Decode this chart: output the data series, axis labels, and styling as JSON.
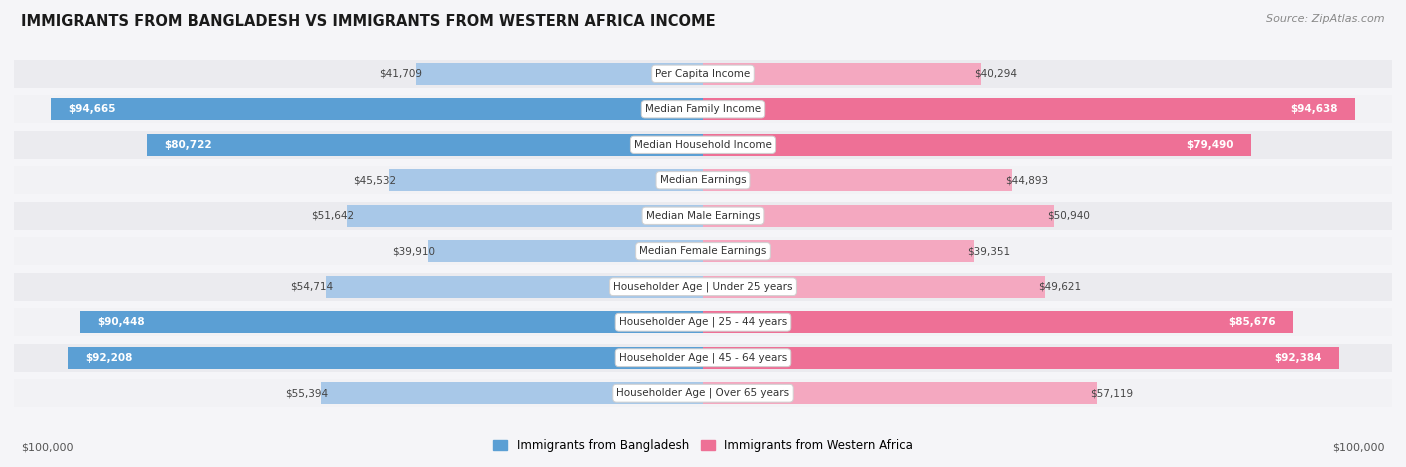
{
  "title": "IMMIGRANTS FROM BANGLADESH VS IMMIGRANTS FROM WESTERN AFRICA INCOME",
  "source": "Source: ZipAtlas.com",
  "categories": [
    "Per Capita Income",
    "Median Family Income",
    "Median Household Income",
    "Median Earnings",
    "Median Male Earnings",
    "Median Female Earnings",
    "Householder Age | Under 25 years",
    "Householder Age | 25 - 44 years",
    "Householder Age | 45 - 64 years",
    "Householder Age | Over 65 years"
  ],
  "bangladesh_values": [
    41709,
    94665,
    80722,
    45532,
    51642,
    39910,
    54714,
    90448,
    92208,
    55394
  ],
  "western_africa_values": [
    40294,
    94638,
    79490,
    44893,
    50940,
    39351,
    49621,
    85676,
    92384,
    57119
  ],
  "bangladesh_labels": [
    "$41,709",
    "$94,665",
    "$80,722",
    "$45,532",
    "$51,642",
    "$39,910",
    "$54,714",
    "$90,448",
    "$92,208",
    "$55,394"
  ],
  "western_africa_labels": [
    "$40,294",
    "$94,638",
    "$79,490",
    "$44,893",
    "$50,940",
    "$39,351",
    "$49,621",
    "$85,676",
    "$92,384",
    "$57,119"
  ],
  "max_value": 100000,
  "color_bangladesh_full": "#5b9fd4",
  "color_bangladesh_light": "#a8c8e8",
  "color_western_full": "#ee7096",
  "color_western_light": "#f4a8c0",
  "row_bg_color": "#e8e8ec",
  "row_bg_alt": "#f0f0f4",
  "fig_bg": "#f5f5f8",
  "legend_bangladesh": "Immigrants from Bangladesh",
  "legend_western": "Immigrants from Western Africa",
  "xlabel_left": "$100,000",
  "xlabel_right": "$100,000",
  "bangladesh_full_threshold": 75000,
  "western_full_threshold": 75000
}
